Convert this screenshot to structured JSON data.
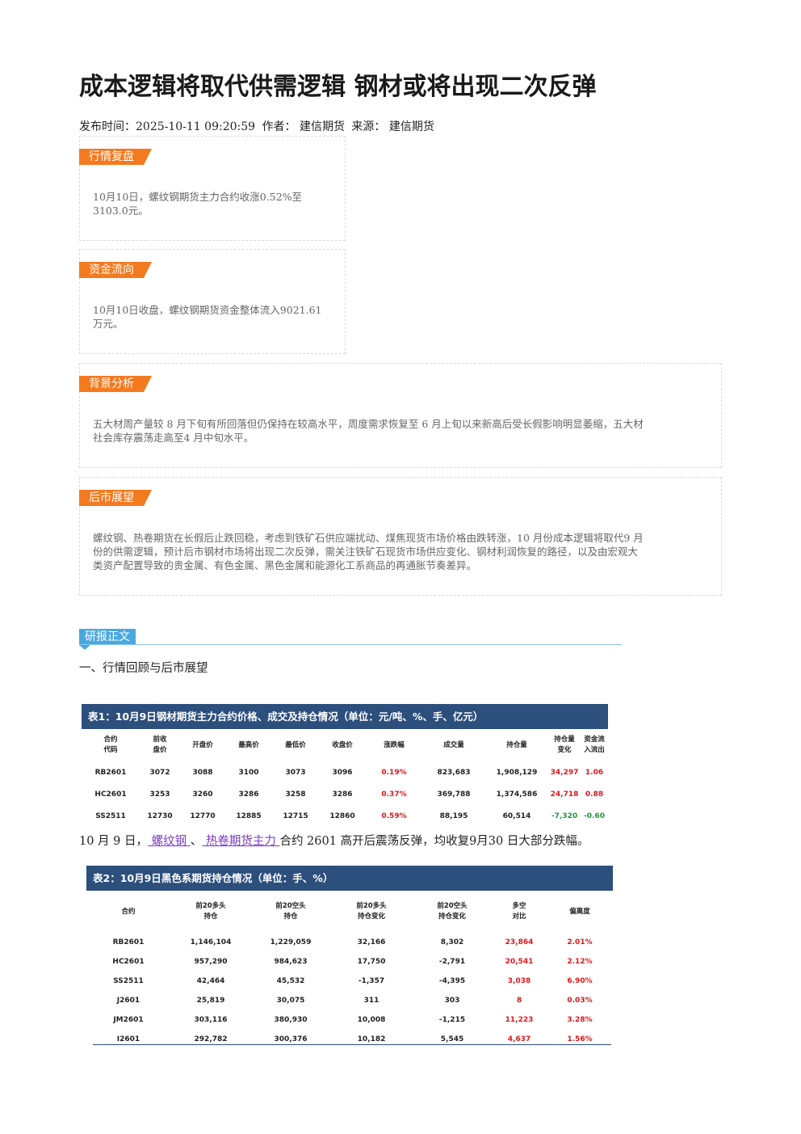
{
  "article": {
    "title": "成本逻辑将取代供需逻辑 钢材或将出现二次反弹",
    "meta_publish": "发布时间：2025-10-11 09:20:59",
    "meta_author": "作者：  建信期货",
    "meta_source": "来源：  建信期货"
  },
  "sections": {
    "market_review": {
      "tag": "行情复盘",
      "text_line1": "10月10日，螺纹钢期货主力合约收涨0.52%至",
      "text_line2": "3103.0元。"
    },
    "fund_flow": {
      "tag": "资金流向",
      "text_line1": "10月10日收盘，螺纹钢期货资金整体流入9021.61",
      "text_line2": "万元。"
    },
    "background": {
      "tag": "背景分析",
      "text_line1": "五大材周产量较 8 月下旬有所回落但仍保持在较高水平，周度需求恢复至 6 月上旬以来新高后受长假影响明显萎缩，五大材",
      "text_line2": "社会库存震荡走高至4 月中旬水平。"
    },
    "outlook": {
      "tag": "后市展望",
      "text_line1": "螺纹钢、热卷期货在长假后止跌回稳，考虑到铁矿石供应端扰动、煤焦现货市场价格由跌转涨，10 月份成本逻辑将取代9 月",
      "text_line2": "份的供需逻辑，预计后市钢材市场将出现二次反弹，需关注铁矿石现货市场供应变化、钢材利润恢复的路径，以及由宏观大",
      "text_line3": "类资产配置导致的贵金属、有色金属、黑色金属和能源化工系商品的再通胀节奏差异。"
    }
  },
  "report": {
    "tag": "研报正文",
    "heading": "一、行情回顾与后市展望"
  },
  "table1": {
    "title": "表1：10月9日钢材期货主力合约价格、成交及持仓情况（单位：元/吨、%、手、亿元）",
    "headers": [
      [
        "合约",
        "代码"
      ],
      [
        "前收",
        "盘价"
      ],
      [
        "开盘价",
        ""
      ],
      [
        "最高价",
        ""
      ],
      [
        "最低价",
        ""
      ],
      [
        "收盘价",
        ""
      ],
      [
        "涨跌幅",
        ""
      ],
      [
        "成交量",
        ""
      ],
      [
        "持仓量",
        ""
      ],
      [
        "持仓量",
        "变化"
      ],
      [
        "资金流",
        "入流出"
      ]
    ],
    "rows": [
      [
        "RB2601",
        "3072",
        "3088",
        "3100",
        "3073",
        "3096",
        "0.19%",
        "823,683",
        "1,908,129",
        "34,297",
        "1.06"
      ],
      [
        "HC2601",
        "3253",
        "3260",
        "3286",
        "3258",
        "3286",
        "0.37%",
        "369,788",
        "1,374,586",
        "24,718",
        "0.88"
      ],
      [
        "SS2511",
        "12730",
        "12770",
        "12885",
        "12715",
        "12860",
        "0.59%",
        "88,195",
        "60,514",
        "-7,320",
        "-0.60"
      ]
    ]
  },
  "paragraph": {
    "prefix": "10 月 9 日，",
    "link1": " 螺纹钢 ",
    "sep": "、",
    "link2": " 热卷期货主力 ",
    "suffix": "合约 2601 高开后震荡反弹，均收复9月30 日大部分跌幅。"
  },
  "table2": {
    "title": "表2：10月9日黑色系期货持仓情况（单位：手、%）",
    "headers": [
      [
        "合约",
        ""
      ],
      [
        "前20多头",
        "持仓"
      ],
      [
        "前20空头",
        "持仓"
      ],
      [
        "前20多头",
        "持仓变化"
      ],
      [
        "前20空头",
        "持仓变化"
      ],
      [
        "多空",
        "对比"
      ],
      [
        "偏离度",
        ""
      ]
    ],
    "rows": [
      [
        "RB2601",
        "1,146,104",
        "1,229,059",
        "32,166",
        "8,302",
        "23,864",
        "2.01%"
      ],
      [
        "HC2601",
        "957,290",
        "984,623",
        "17,750",
        "-2,791",
        "20,541",
        "2.12%"
      ],
      [
        "SS2511",
        "42,464",
        "45,532",
        "-1,357",
        "-4,395",
        "3,038",
        "6.90%"
      ],
      [
        "J2601",
        "25,819",
        "30,075",
        "311",
        "303",
        "8",
        "0.03%"
      ],
      [
        "JM2601",
        "303,116",
        "380,930",
        "10,008",
        "-1,215",
        "11,223",
        "3.28%"
      ],
      [
        "I2601",
        "292,782",
        "300,376",
        "10,182",
        "5,545",
        "4,637",
        "1.56%"
      ]
    ]
  },
  "colors": {
    "tag_orange": "#f47a20",
    "report_blue": "#4aa8e0",
    "table_navy": "#2d4f7c",
    "up_red": "#e0161b",
    "down_green": "#1a9b34",
    "link_purple": "#7a3ec0"
  }
}
